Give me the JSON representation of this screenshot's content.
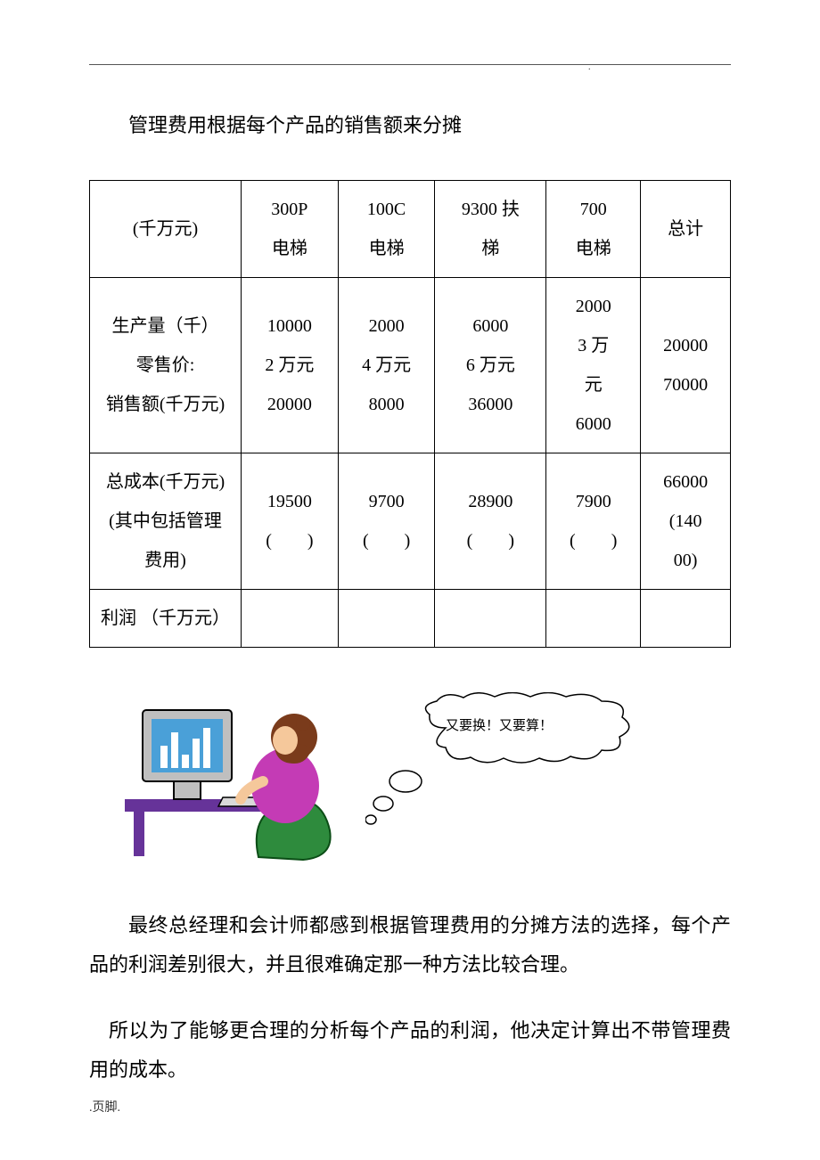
{
  "heading": "管理费用根据每个产品的销售额来分摊",
  "table": {
    "header": {
      "unit": "(千万元)",
      "cols": [
        "300P\n电梯",
        "100C\n电梯",
        "9300 扶\n梯",
        "700\n电梯",
        "总计"
      ]
    },
    "row_prod": {
      "labels": [
        "生产量（千）",
        "零售价:",
        "销售额(千万元)"
      ],
      "cells": [
        [
          "10000",
          "2 万元",
          "20000"
        ],
        [
          "2000",
          "4 万元",
          "8000"
        ],
        [
          "6000",
          "6 万元",
          "36000"
        ],
        [
          "2000",
          "3 万\n元\n6000"
        ],
        [
          "20000",
          "",
          "70000"
        ]
      ]
    },
    "row_cost": {
      "labels": [
        "总成本(千万元)",
        "(其中包括管理",
        "费用)"
      ],
      "cells": [
        [
          "19500",
          "",
          "(　　)"
        ],
        [
          "9700",
          "",
          "(　　)"
        ],
        [
          "28900",
          "",
          "(　　)"
        ],
        [
          "7900",
          "",
          "(　　)"
        ],
        [
          "66000",
          "",
          "(140\n00)"
        ]
      ]
    },
    "row_profit": {
      "label": "利润 （千万元）",
      "cells": [
        "",
        "",
        "",
        "",
        ""
      ]
    }
  },
  "illustration": {
    "bubble_text": "又要换！又要算！",
    "monitor_bg": "#4aa0d8",
    "monitor_frame": "#bfbfbf",
    "bars": "#ffffff",
    "desk": "#663399",
    "chair": "#2e8b3d",
    "hair": "#7a3b1b",
    "shirt": "#c43bb5",
    "skin": "#f5c89b"
  },
  "para1": "最终总经理和会计师都感到根据管理费用的分摊方法的选择，每个产品的利润差别很大，并且很难确定那一种方法比较合理。",
  "para2": "所以为了能够更合理的分析每个产品的利润，他决定计算出不带管理费用的成本。",
  "footer": ".页脚.",
  "colors": {
    "text": "#000000",
    "bg": "#ffffff",
    "rule": "#555555",
    "border": "#000000"
  }
}
